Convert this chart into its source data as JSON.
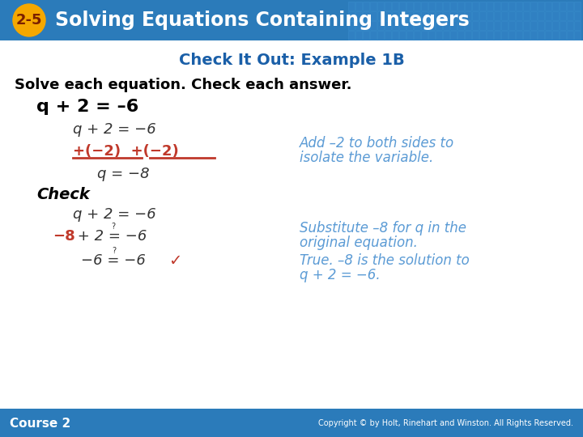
{
  "header_bg_color": "#2b7bba",
  "header_text": "Solving Equations Containing Integers",
  "badge_bg": "#f5a800",
  "badge_text": "2-5",
  "badge_text_color": "#7b2000",
  "subtitle": "Check It Out: Example 1B",
  "subtitle_color": "#1a5fa8",
  "body_bg": "#dce9f5",
  "content_bg": "#ffffff",
  "bold_intro": "Solve each equation. Check each answer.",
  "bold_intro_color": "#000000",
  "eq_bold": "q + 2 = –6",
  "eq_bold_color": "#000000",
  "line1": "q + 2 = −6",
  "line1_color": "#333333",
  "line2_orange": "+(−2)  +(−2)",
  "line2_color": "#c0392b",
  "line3": "q = −8",
  "line3_color": "#333333",
  "check_label": "Check",
  "check_color": "#000000",
  "check_line1": "q + 2 = −6",
  "check_line1_color": "#333333",
  "check_line2_orange": "−8",
  "check_line2_rest": " + 2 = −6",
  "check_line2_color": "#333333",
  "check_line2_orange_color": "#c0392b",
  "check_line3_black": "−6 = −6",
  "check_line3_check_color": "#c0392b",
  "note1_line1": "Add –2 to both sides to",
  "note1_line2": "isolate the variable.",
  "note1_color": "#5b9bd5",
  "note2_line1": "Substitute –8 for q in the",
  "note2_line2": "original equation.",
  "note2_color": "#5b9bd5",
  "note3_line1": "True. –8 is the solution to",
  "note3_line2": "q + 2 = −6.",
  "note3_color": "#5b9bd5",
  "footer_bg": "#2b7bba",
  "footer_left": "Course 2",
  "footer_right": "Copyright © by Holt, Rinehart and Winston. All Rights Reserved.",
  "footer_color": "#ffffff",
  "grid_color": "#3a8fd0"
}
